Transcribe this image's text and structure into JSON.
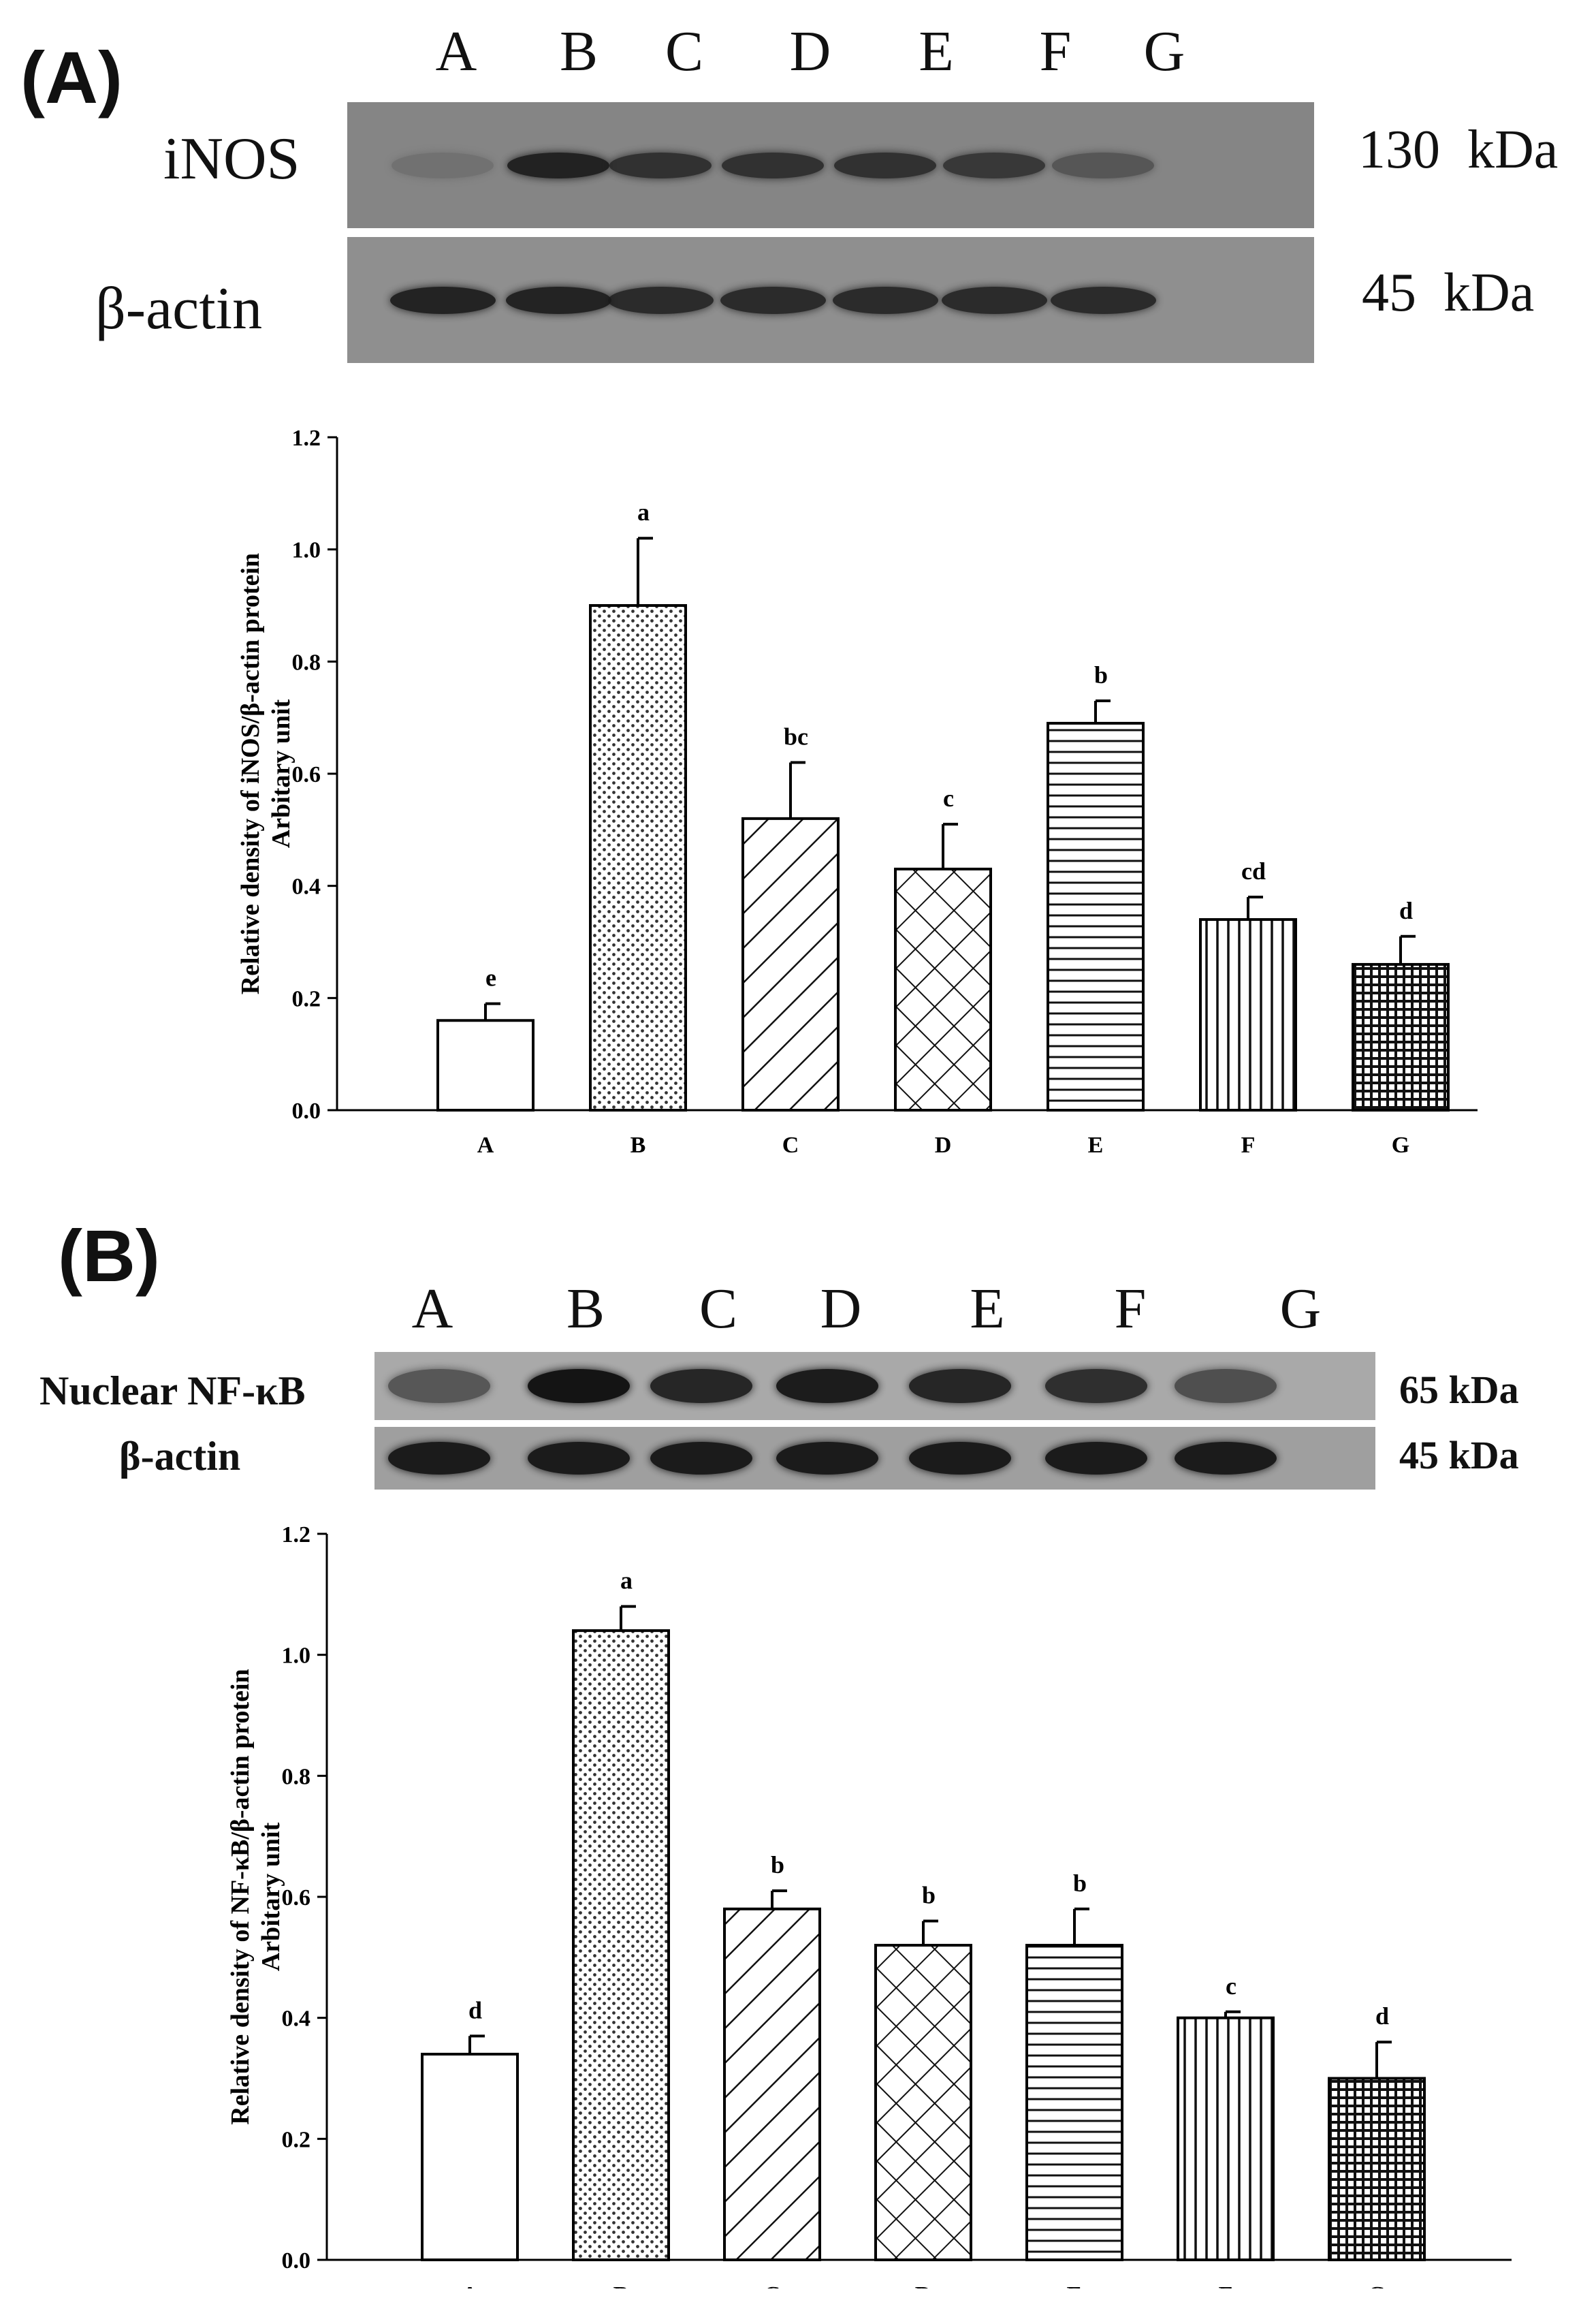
{
  "panels": [
    {
      "label": "(A)",
      "lanes": [
        "A",
        "B",
        "C",
        "D",
        "E",
        "F",
        "G"
      ],
      "blot": {
        "target_label": "iNOS",
        "target_size": "130  kDa",
        "control_label": "β-actin",
        "control_size": "45  kDa",
        "target_intensity": [
          0.15,
          0.85,
          0.75,
          0.75,
          0.75,
          0.7,
          0.45
        ],
        "control_intensity": [
          0.85,
          0.85,
          0.8,
          0.8,
          0.8,
          0.8,
          0.8
        ]
      }
    },
    {
      "label": "(B)",
      "lanes": [
        "A",
        "B",
        "C",
        "D",
        "E",
        "F",
        "G"
      ],
      "blot": {
        "target_label": "Nuclear NF-κB",
        "target_size": "65 kDa",
        "control_label": "β-actin",
        "control_size": "45 kDa",
        "target_intensity": [
          0.55,
          0.95,
          0.85,
          0.9,
          0.85,
          0.8,
          0.6
        ],
        "control_intensity": [
          0.9,
          0.9,
          0.9,
          0.9,
          0.9,
          0.9,
          0.9
        ]
      }
    }
  ],
  "chart_data": [
    {
      "type": "bar",
      "categories": [
        "A",
        "B",
        "C",
        "D",
        "E",
        "F",
        "G"
      ],
      "values": [
        0.16,
        0.9,
        0.52,
        0.43,
        0.69,
        0.34,
        0.26
      ],
      "errors": [
        0.03,
        0.12,
        0.1,
        0.08,
        0.04,
        0.04,
        0.05
      ],
      "significance": [
        "e",
        "a",
        "bc",
        "c",
        "b",
        "cd",
        "d"
      ],
      "patterns": [
        "none",
        "dots",
        "diagonal",
        "crosshatch",
        "horizontal",
        "vertical",
        "grid"
      ],
      "ylabel": "Relative density of iNOS/β-actin protein",
      "ylabel2": "Arbitary unit",
      "ylim": [
        0,
        1.2
      ],
      "yticks": [
        "0.0",
        "0.2",
        "0.4",
        "0.6",
        "0.8",
        "1.0",
        "1.2"
      ],
      "grid": false
    },
    {
      "type": "bar",
      "categories": [
        "A",
        "B",
        "C",
        "D",
        "E",
        "F",
        "G"
      ],
      "values": [
        0.34,
        1.04,
        0.58,
        0.52,
        0.52,
        0.4,
        0.3
      ],
      "errors": [
        0.03,
        0.04,
        0.03,
        0.04,
        0.06,
        0.01,
        0.06
      ],
      "significance": [
        "d",
        "a",
        "b",
        "b",
        "b",
        "c",
        "d"
      ],
      "patterns": [
        "none",
        "dots",
        "diagonal",
        "crosshatch",
        "horizontal",
        "vertical",
        "grid"
      ],
      "ylabel": "Relative density of NF-κB/β-actin protein",
      "ylabel2": "Arbitary unit",
      "ylim": [
        0,
        1.2
      ],
      "yticks": [
        "0.0",
        "0.2",
        "0.4",
        "0.6",
        "0.8",
        "1.0",
        "1.2"
      ],
      "grid": false
    }
  ]
}
